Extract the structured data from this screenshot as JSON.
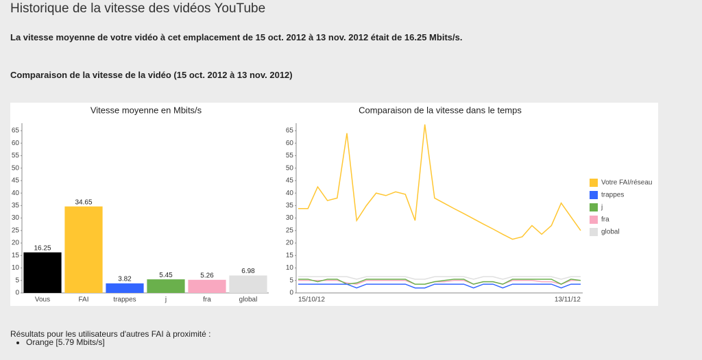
{
  "header": {
    "title": "Historique de la vitesse des vidéos YouTube",
    "summary": "La vitesse moyenne de votre vidéo à cet emplacement de 15 oct. 2012 à 13 nov. 2012 était de 16.25 Mbits/s.",
    "subtitle": "Comparaison de la vitesse de la vidéo (15 oct. 2012 à 13 nov. 2012)"
  },
  "chart_data": [
    {
      "type": "bar",
      "title": "Vitesse moyenne en Mbits/s",
      "categories": [
        "Vous",
        "FAI",
        "trappes",
        "j",
        "fra",
        "global"
      ],
      "values": [
        16.25,
        34.65,
        3.82,
        5.45,
        5.26,
        6.98
      ],
      "colors": [
        "#000000",
        "#ffc631",
        "#3366ff",
        "#6ab04c",
        "#f9a8c0",
        "#e0e0e0"
      ],
      "ylim": [
        0,
        68
      ],
      "yticks": [
        0,
        5,
        10,
        15,
        20,
        25,
        30,
        35,
        40,
        45,
        50,
        55,
        60,
        65
      ]
    },
    {
      "type": "line",
      "title": "Comparaison de la vitesse dans le temps",
      "categories": [
        "15/10/12",
        null,
        null,
        null,
        null,
        null,
        null,
        null,
        null,
        null,
        null,
        null,
        null,
        null,
        null,
        null,
        null,
        null,
        null,
        null,
        null,
        null,
        null,
        null,
        null,
        null,
        null,
        null,
        null,
        "13/11/12"
      ],
      "series": [
        {
          "name": "Votre FAI/réseau",
          "color": "#ffc631",
          "values": [
            33.8,
            33.8,
            42.5,
            37,
            38,
            64,
            29,
            35,
            40,
            39,
            40.5,
            39.5,
            29,
            67.5,
            38,
            35.9,
            33.8,
            31.8,
            29.7,
            27.6,
            25.6,
            23.5,
            21.5,
            22.5,
            27,
            23.5,
            27,
            36,
            30.5,
            25
          ]
        },
        {
          "name": "trappes",
          "color": "#3366ff",
          "values": [
            3.5,
            3.5,
            3.5,
            3.5,
            3.5,
            3.5,
            2,
            3.5,
            3.5,
            3.5,
            3.5,
            3.5,
            2,
            2,
            3.5,
            3.5,
            3.5,
            3.5,
            2,
            3.5,
            3.5,
            2,
            3.5,
            3.5,
            3.5,
            3.5,
            3.5,
            2,
            3.5,
            3.5
          ]
        },
        {
          "name": "j",
          "color": "#6ab04c",
          "values": [
            5.5,
            5.5,
            4.5,
            5.5,
            5.5,
            3.5,
            4,
            5.5,
            5.5,
            5.5,
            5.5,
            5.5,
            3.5,
            3.5,
            4.5,
            5,
            5.5,
            5.5,
            3.5,
            4.5,
            4.5,
            3.5,
            5.5,
            5.5,
            5.5,
            5.5,
            5.5,
            3.5,
            5.5,
            5
          ]
        },
        {
          "name": "fra",
          "color": "#f9a8c0",
          "values": [
            5,
            5,
            5,
            5,
            5,
            4,
            3.5,
            5,
            5,
            5,
            5,
            5,
            3.5,
            3.5,
            4.5,
            4.5,
            5,
            5,
            3.5,
            4.5,
            4.5,
            3.5,
            5,
            5,
            5,
            4.5,
            4.5,
            3.5,
            5,
            5
          ]
        },
        {
          "name": "global",
          "color": "#e0e0e0",
          "values": [
            6.5,
            6.5,
            6.5,
            6.5,
            6.5,
            6.5,
            5.5,
            6.5,
            6.5,
            6.5,
            6.5,
            6.5,
            5.5,
            5.5,
            6.5,
            6.5,
            6.5,
            6.5,
            5.5,
            6.5,
            6.5,
            5.5,
            6.5,
            6.5,
            6.5,
            6.5,
            6.5,
            5.5,
            6.5,
            6.5
          ]
        }
      ],
      "ylim": [
        0,
        68
      ],
      "yticks": [
        0,
        5,
        10,
        15,
        20,
        25,
        30,
        35,
        40,
        45,
        50,
        55,
        60,
        65
      ],
      "legend": "right"
    }
  ],
  "footer": {
    "text": "Résultats pour les utilisateurs d'autres FAI à proximité :",
    "items": [
      "Orange [5.79 Mbits/s]"
    ]
  }
}
